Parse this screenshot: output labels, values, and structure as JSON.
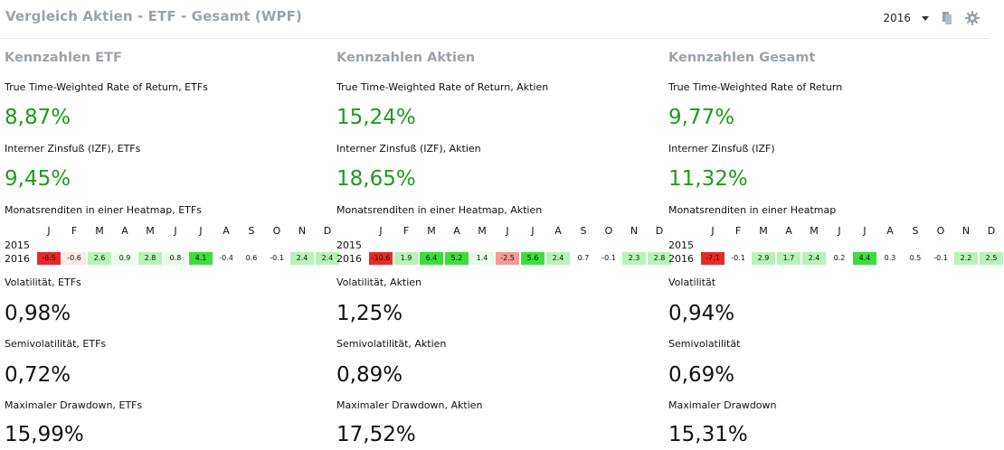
{
  "header": {
    "title": "Vergleich Aktien - ETF - Gesamt (WPF)",
    "year_selected": "2016",
    "icons": [
      "document-icon",
      "gear-icon"
    ]
  },
  "months": [
    "J",
    "F",
    "M",
    "A",
    "M",
    "J",
    "J",
    "A",
    "S",
    "O",
    "N",
    "D"
  ],
  "colors": {
    "positive_text": "#1e9b1e",
    "title_gray": "#9aa3ab",
    "heat_strong_negative": "#e62a2a",
    "heat_mild_negative": "#f29a9a",
    "heat_strong_positive": "#3ddc3d",
    "heat_mild_positive": "#b9f2b9"
  },
  "columns": [
    {
      "title": "Kennzahlen ETF",
      "ttwror_label": "True Time-Weighted Rate of Return, ETFs",
      "ttwror_value": "8,87%",
      "izf_label": "Interner Zinsfuß (IZF), ETFs",
      "izf_value": "9,45%",
      "heatmap_label": "Monatsrenditen in einer Heatmap, ETFs",
      "years": [
        "2015",
        "2016"
      ],
      "heat_2016": [
        "-6.5",
        "-0.6",
        "2.6",
        "0.9",
        "2.8",
        "0.8",
        "4.1",
        "-0.4",
        "0.6",
        "-0.1",
        "2.4",
        "2.4"
      ],
      "vol_label": "Volatilität, ETFs",
      "vol_value": "0,98%",
      "semivol_label": "Semivolatilität, ETFs",
      "semivol_value": "0,72%",
      "mdd_label": "Maximaler Drawdown, ETFs",
      "mdd_value": "15,99%"
    },
    {
      "title": "Kennzahlen Aktien",
      "ttwror_label": "True Time-Weighted Rate of Return, Aktien",
      "ttwror_value": "15,24%",
      "izf_label": "Interner Zinsfuß (IZF), Aktien",
      "izf_value": "18,65%",
      "heatmap_label": "Monatsrenditen in einer Heatmap, Aktien",
      "years": [
        "2015",
        "2016"
      ],
      "heat_2016": [
        "-10.6",
        "1.9",
        "6.4",
        "5.2",
        "1.4",
        "-2.5",
        "5.6",
        "2.4",
        "0.7",
        "-0.1",
        "2.3",
        "2.8"
      ],
      "vol_label": "Volatilität, Aktien",
      "vol_value": "1,25%",
      "semivol_label": "Semivolatilität, Aktien",
      "semivol_value": "0,89%",
      "mdd_label": "Maximaler Drawdown, Aktien",
      "mdd_value": "17,52%"
    },
    {
      "title": "Kennzahlen Gesamt",
      "ttwror_label": "True Time-Weighted Rate of Return",
      "ttwror_value": "9,77%",
      "izf_label": "Interner Zinsfuß (IZF)",
      "izf_value": "11,32%",
      "heatmap_label": "Monatsrenditen in einer Heatmap",
      "years": [
        "2015",
        "2016"
      ],
      "heat_2016": [
        "-7.1",
        "-0.1",
        "2.9",
        "1.7",
        "2.4",
        "0.2",
        "4.4",
        "0.3",
        "0.5",
        "-0.1",
        "2.2",
        "2.5"
      ],
      "vol_label": "Volatilität",
      "vol_value": "0,94%",
      "semivol_label": "Semivolatilität",
      "semivol_value": "0,69%",
      "mdd_label": "Maximaler Drawdown",
      "mdd_value": "15,31%"
    }
  ]
}
